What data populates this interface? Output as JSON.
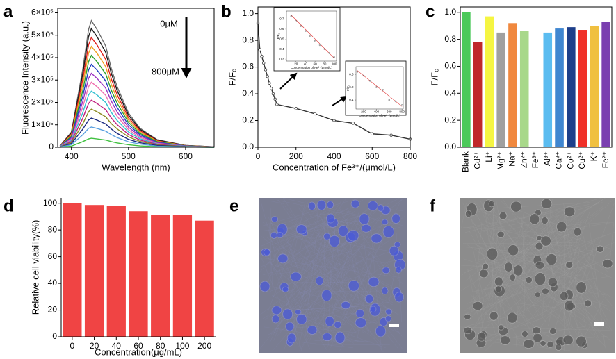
{
  "chart_data": [
    {
      "type": "line",
      "label": "a",
      "xlabel": "Wavelength (nm)",
      "ylabel": "Fluorescence Intensity (a.u.)",
      "annotations": [
        "0μM",
        "800μM"
      ],
      "x": [
        380,
        400,
        420,
        430,
        435,
        445,
        460,
        470,
        480,
        500,
        520,
        550,
        600,
        650
      ],
      "series": [
        {
          "color": "#6b6b6b",
          "values": [
            6000,
            68000,
            350000,
            525000,
            565000,
            525000,
            452000,
            350000,
            271000,
            153000,
            85000,
            34000,
            8000,
            2000
          ]
        },
        {
          "color": "#1a1a1a",
          "values": [
            5000,
            64000,
            329000,
            493000,
            530000,
            493000,
            424000,
            329000,
            254000,
            143000,
            80000,
            32000,
            8000,
            2000
          ]
        },
        {
          "color": "#e0201c",
          "values": [
            5000,
            59000,
            304000,
            456000,
            490000,
            456000,
            392000,
            304000,
            235000,
            132000,
            74000,
            29000,
            7000,
            1000
          ]
        },
        {
          "color": "#f0a020",
          "values": [
            5000,
            54000,
            279000,
            419000,
            450000,
            419000,
            360000,
            279000,
            216000,
            122000,
            68000,
            27000,
            7000,
            1000
          ]
        },
        {
          "color": "#2ca02c",
          "values": [
            4000,
            49000,
            254000,
            381000,
            410000,
            381000,
            328000,
            254000,
            197000,
            111000,
            62000,
            25000,
            6000,
            1000
          ]
        },
        {
          "color": "#1f3fbf",
          "values": [
            4000,
            44000,
            229000,
            344000,
            370000,
            344000,
            296000,
            229000,
            178000,
            100000,
            56000,
            22000,
            6000,
            1000
          ]
        },
        {
          "color": "#9b30c0",
          "values": [
            3000,
            40000,
            205000,
            307000,
            330000,
            307000,
            264000,
            205000,
            158000,
            89000,
            50000,
            20000,
            5000,
            1000
          ]
        },
        {
          "color": "#f070b0",
          "values": [
            3000,
            35000,
            180000,
            270000,
            290000,
            270000,
            232000,
            180000,
            139000,
            78000,
            44000,
            17000,
            4000,
            1000
          ]
        },
        {
          "color": "#30c0d0",
          "values": [
            3000,
            30000,
            155000,
            233000,
            250000,
            233000,
            200000,
            155000,
            120000,
            68000,
            38000,
            15000,
            4000,
            1000
          ]
        },
        {
          "color": "#c02080",
          "values": [
            2000,
            25000,
            130000,
            195000,
            210000,
            195000,
            168000,
            130000,
            101000,
            57000,
            32000,
            13000,
            3000,
            1000
          ]
        },
        {
          "color": "#8a8a20",
          "values": [
            2000,
            20000,
            105000,
            158000,
            170000,
            158000,
            136000,
            105000,
            82000,
            46000,
            26000,
            10000,
            3000,
            1000
          ]
        },
        {
          "color": "#1a2a80",
          "values": [
            1000,
            16000,
            81000,
            121000,
            130000,
            121000,
            104000,
            81000,
            62000,
            35000,
            20000,
            8000,
            2000,
            0
          ]
        },
        {
          "color": "#5aa0e0",
          "values": [
            1000,
            11000,
            56000,
            84000,
            90000,
            84000,
            72000,
            56000,
            43000,
            24000,
            14000,
            5000,
            1000,
            0
          ]
        },
        {
          "color": "#40c040",
          "values": [
            0,
            5000,
            25000,
            37000,
            40000,
            37000,
            32000,
            25000,
            19000,
            11000,
            6000,
            2000,
            1000,
            0
          ]
        }
      ],
      "xlim": [
        376,
        650
      ],
      "ylim": [
        0,
        620000
      ],
      "xticks": [
        400,
        500,
        600
      ],
      "yticks": [
        0,
        {
          "value": 100000,
          "label": "1×10⁵"
        },
        {
          "value": 200000,
          "label": "2×10⁵"
        },
        {
          "value": 300000,
          "label": "3×10⁵"
        },
        {
          "value": 400000,
          "label": "4×10⁵"
        },
        {
          "value": 500000,
          "label": "5×10⁵"
        },
        {
          "value": 600000,
          "label": "6×10⁵"
        }
      ]
    },
    {
      "type": "line",
      "label": "b",
      "xlabel": "Concentration of Fe³⁺/(μmol/L)",
      "ylabel": "F/F₀",
      "x": [
        0,
        10,
        20,
        30,
        40,
        50,
        60,
        70,
        80,
        90,
        100,
        200,
        300,
        400,
        500,
        600,
        700,
        800
      ],
      "series": [
        {
          "color": "#333333",
          "markers": true,
          "values": [
            0.93,
            0.73,
            0.68,
            0.63,
            0.58,
            0.53,
            0.48,
            0.44,
            0.4,
            0.36,
            0.32,
            0.29,
            0.25,
            0.2,
            0.18,
            0.1,
            0.09,
            0.06
          ]
        }
      ],
      "xlim": [
        0,
        800
      ],
      "ylim": [
        0,
        1.05
      ],
      "xticks": [
        0,
        200,
        400,
        600,
        800
      ],
      "yticks": [
        {
          "value": 0,
          "label": "0.0"
        },
        0.2,
        0.4,
        0.6,
        0.8,
        {
          "value": 1,
          "label": "1.0"
        }
      ],
      "insets": [
        {
          "type": "scatter",
          "xlabel": "Concentration of Fe³⁺(μmol/L)",
          "ylabel": "F/F₀",
          "x": [
            10,
            20,
            30,
            40,
            50,
            60,
            70,
            80,
            90,
            100
          ],
          "values": [
            0.73,
            0.68,
            0.63,
            0.58,
            0.53,
            0.48,
            0.44,
            0.4,
            0.36,
            0.32
          ],
          "color": "#333333",
          "fit": {
            "x": [
              10,
              100
            ],
            "values": [
              0.74,
              0.31
            ],
            "color": "#e03030"
          },
          "xlim": [
            0,
            105
          ],
          "ylim": [
            0.28,
            0.78
          ],
          "xticks": [
            20,
            40,
            60,
            80,
            100
          ],
          "yticks": [
            0.3,
            0.4,
            0.5,
            0.6,
            0.7
          ]
        },
        {
          "type": "scatter",
          "xlabel": "Concentration of Fe³⁺(μmol/L)",
          "ylabel": "F/F₀",
          "x": [
            100,
            200,
            300,
            400,
            500,
            600,
            700,
            800
          ],
          "values": [
            0.32,
            0.29,
            0.25,
            0.2,
            0.18,
            0.1,
            0.09,
            0.06
          ],
          "color": "#333333",
          "fit": {
            "x": [
              100,
              800
            ],
            "values": [
              0.33,
              0.05
            ],
            "color": "#e03030"
          },
          "xlim": [
            80,
            820
          ],
          "ylim": [
            0.03,
            0.36
          ],
          "xticks": [
            200,
            400,
            600,
            800
          ],
          "yticks": [
            0.1,
            0.2,
            0.3
          ]
        }
      ]
    },
    {
      "type": "bar",
      "label": "c",
      "ylabel": "F/F₀",
      "categories": [
        "Blank",
        "Cd²⁺",
        "Li⁺",
        "Mg²⁺",
        "Na⁺",
        "Zn²⁺",
        "Fe³⁺",
        "Al³⁺",
        "Ca²⁺",
        "Co²⁺",
        "Cu²⁺",
        "K⁺",
        "Fe²⁺"
      ],
      "values": [
        1.0,
        0.78,
        0.97,
        0.85,
        0.92,
        0.86,
        0.01,
        0.85,
        0.88,
        0.89,
        0.87,
        0.9,
        0.93
      ],
      "colors": [
        "#4cc95a",
        "#c0282a",
        "#f5f542",
        "#a0a0a0",
        "#f0883e",
        "#a8d88a",
        "#ffffff",
        "#5bbcf0",
        "#3f86d0",
        "#1d3f8a",
        "#f03028",
        "#f0c040",
        "#7a3fb0"
      ],
      "ylim": [
        0,
        1.04
      ],
      "yticks": [
        {
          "value": 0,
          "label": "0.0"
        },
        0.2,
        0.4,
        0.6,
        0.8,
        {
          "value": 1,
          "label": "1.0"
        }
      ]
    },
    {
      "type": "bar",
      "label": "d",
      "xlabel": "Concentration(μg/mL)",
      "ylabel": "Relative cell viability(%)",
      "categories": [
        "0",
        "20",
        "40",
        "60",
        "80",
        "100",
        "200"
      ],
      "values": [
        100,
        98.7,
        98.2,
        94,
        91,
        91,
        87
      ],
      "color": "#f04444",
      "ylim": [
        0,
        104
      ],
      "yticks": [
        0,
        20,
        40,
        60,
        80,
        100
      ]
    }
  ],
  "images": [
    {
      "label": "e"
    },
    {
      "label": "f"
    }
  ]
}
